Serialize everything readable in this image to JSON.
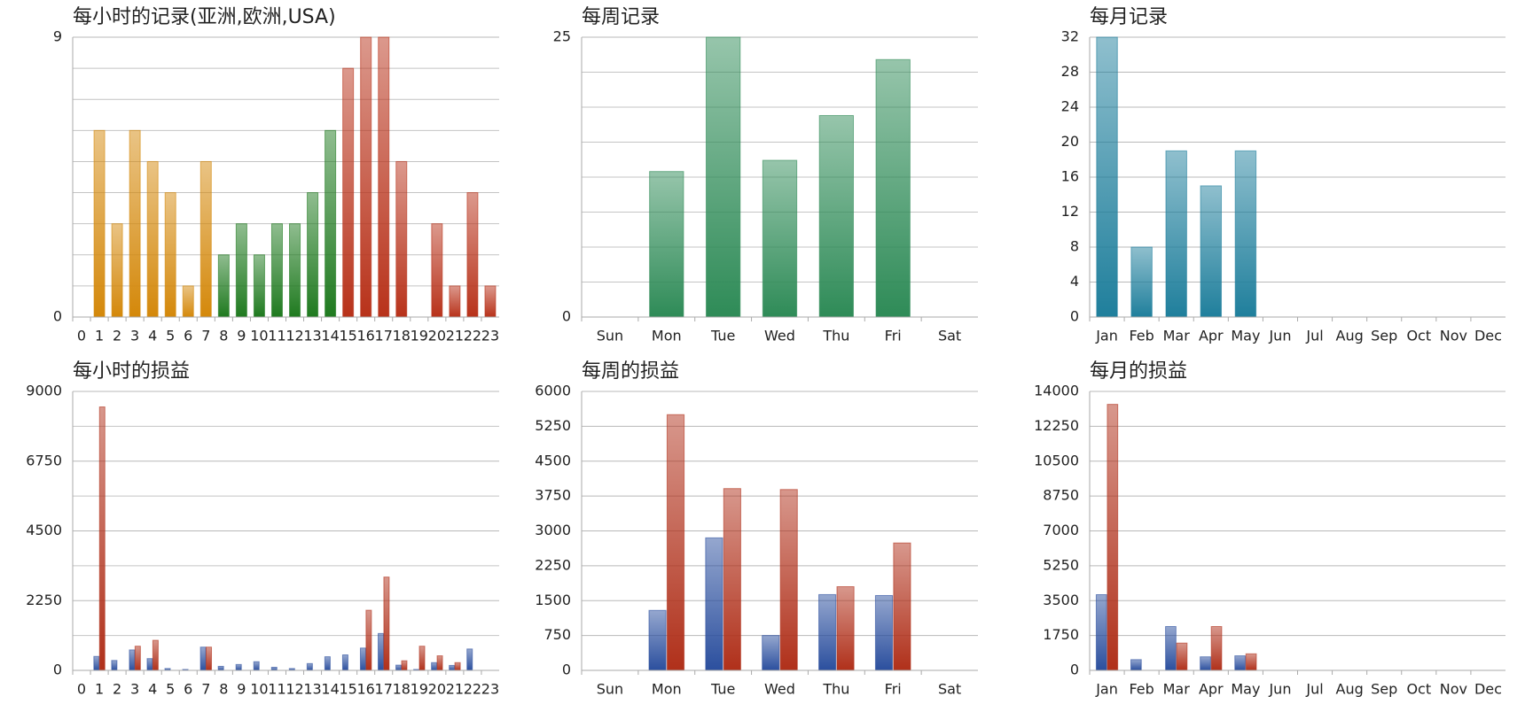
{
  "chart_data": [
    {
      "type": "bar",
      "title": "每小时的记录(亚洲,欧洲,USA)",
      "categories": [
        "0",
        "1",
        "2",
        "3",
        "4",
        "5",
        "6",
        "7",
        "8",
        "9",
        "10",
        "11",
        "12",
        "13",
        "14",
        "15",
        "16",
        "17",
        "18",
        "19",
        "20",
        "21",
        "22",
        "23"
      ],
      "values": [
        0,
        6,
        3,
        6,
        5,
        4,
        1,
        5,
        2,
        3,
        2,
        3,
        3,
        4,
        6,
        8,
        9,
        9,
        5,
        0,
        3,
        1,
        4,
        1
      ],
      "colors": [
        "#d4880a",
        "#d4880a",
        "#d4880a",
        "#d4880a",
        "#d4880a",
        "#d4880a",
        "#d4880a",
        "#d4880a",
        "#1f7a1f",
        "#1f7a1f",
        "#1f7a1f",
        "#1f7a1f",
        "#1f7a1f",
        "#1f7a1f",
        "#1f7a1f",
        "#b8321a",
        "#b8321a",
        "#b8321a",
        "#b8321a",
        "#b8321a",
        "#b8321a",
        "#b8321a",
        "#b8321a",
        "#b8321a"
      ],
      "ylim": [
        0,
        9
      ],
      "yticks": [
        0,
        9
      ],
      "minor_yticks": [
        1,
        2,
        3,
        4,
        5,
        6,
        7,
        8
      ],
      "grid": true
    },
    {
      "type": "bar",
      "title": "每周记录",
      "categories": [
        "Sun",
        "Mon",
        "Tue",
        "Wed",
        "Thu",
        "Fri",
        "Sat"
      ],
      "values": [
        0,
        13,
        25,
        14,
        18,
        23,
        0
      ],
      "color": "#2e8b57",
      "ylim": [
        0,
        25
      ],
      "yticks": [
        0,
        25
      ],
      "minor_yticks": [
        3.125,
        6.25,
        9.375,
        12.5,
        15.625,
        18.75,
        21.875
      ],
      "grid": true
    },
    {
      "type": "bar",
      "title": "每月记录",
      "categories": [
        "Jan",
        "Feb",
        "Mar",
        "Apr",
        "May",
        "Jun",
        "Jul",
        "Aug",
        "Sep",
        "Oct",
        "Nov",
        "Dec"
      ],
      "values": [
        32,
        8,
        19,
        15,
        19,
        0,
        0,
        0,
        0,
        0,
        0,
        0
      ],
      "color": "#1f7f9c",
      "ylim": [
        0,
        32
      ],
      "yticks": [
        0,
        4,
        8,
        12,
        16,
        20,
        24,
        28,
        32
      ],
      "grid": true
    },
    {
      "type": "bar",
      "title": "每小时的损益",
      "categories": [
        "0",
        "1",
        "2",
        "3",
        "4",
        "5",
        "6",
        "7",
        "8",
        "9",
        "10",
        "11",
        "12",
        "13",
        "14",
        "15",
        "16",
        "17",
        "18",
        "19",
        "20",
        "21",
        "22",
        "23"
      ],
      "series": [
        {
          "color": "#2b4f9e",
          "values": [
            0,
            450,
            320,
            660,
            380,
            60,
            30,
            750,
            130,
            190,
            280,
            100,
            60,
            220,
            440,
            500,
            720,
            1190,
            170,
            30,
            250,
            160,
            690,
            0
          ]
        },
        {
          "color": "#b0301a",
          "values": [
            0,
            8500,
            0,
            780,
            970,
            0,
            0,
            750,
            0,
            0,
            0,
            0,
            0,
            0,
            0,
            0,
            1940,
            3010,
            310,
            780,
            470,
            250,
            0,
            0
          ]
        }
      ],
      "ylim": [
        0,
        9000
      ],
      "yticks": [
        0,
        2250,
        4500,
        6750,
        9000
      ],
      "minor_yticks": [
        1125,
        3375,
        5625,
        7875
      ],
      "grid": true
    },
    {
      "type": "bar",
      "title": "每周的损益",
      "categories": [
        "Sun",
        "Mon",
        "Tue",
        "Wed",
        "Thu",
        "Fri",
        "Sat"
      ],
      "series": [
        {
          "color": "#2b4f9e",
          "values": [
            0,
            1290,
            2850,
            750,
            1630,
            1610,
            0
          ]
        },
        {
          "color": "#b0301a",
          "values": [
            0,
            5500,
            3910,
            3890,
            1800,
            2740,
            0
          ]
        }
      ],
      "ylim": [
        0,
        6000
      ],
      "yticks": [
        0,
        750,
        1500,
        2250,
        3000,
        3750,
        4500,
        5250,
        6000
      ],
      "grid": true
    },
    {
      "type": "bar",
      "title": "每月的损益",
      "categories": [
        "Jan",
        "Feb",
        "Mar",
        "Apr",
        "May",
        "Jun",
        "Jul",
        "Aug",
        "Sep",
        "Oct",
        "Nov",
        "Dec"
      ],
      "series": [
        {
          "color": "#2b4f9e",
          "values": [
            3800,
            540,
            2200,
            680,
            730,
            0,
            0,
            0,
            0,
            0,
            0,
            0
          ]
        },
        {
          "color": "#b0301a",
          "values": [
            13350,
            0,
            1370,
            2200,
            830,
            0,
            0,
            0,
            0,
            0,
            0,
            0
          ]
        }
      ],
      "ylim": [
        0,
        14000
      ],
      "yticks": [
        0,
        1750,
        3500,
        5250,
        7000,
        8750,
        10500,
        12250,
        14000
      ],
      "grid": true
    }
  ]
}
